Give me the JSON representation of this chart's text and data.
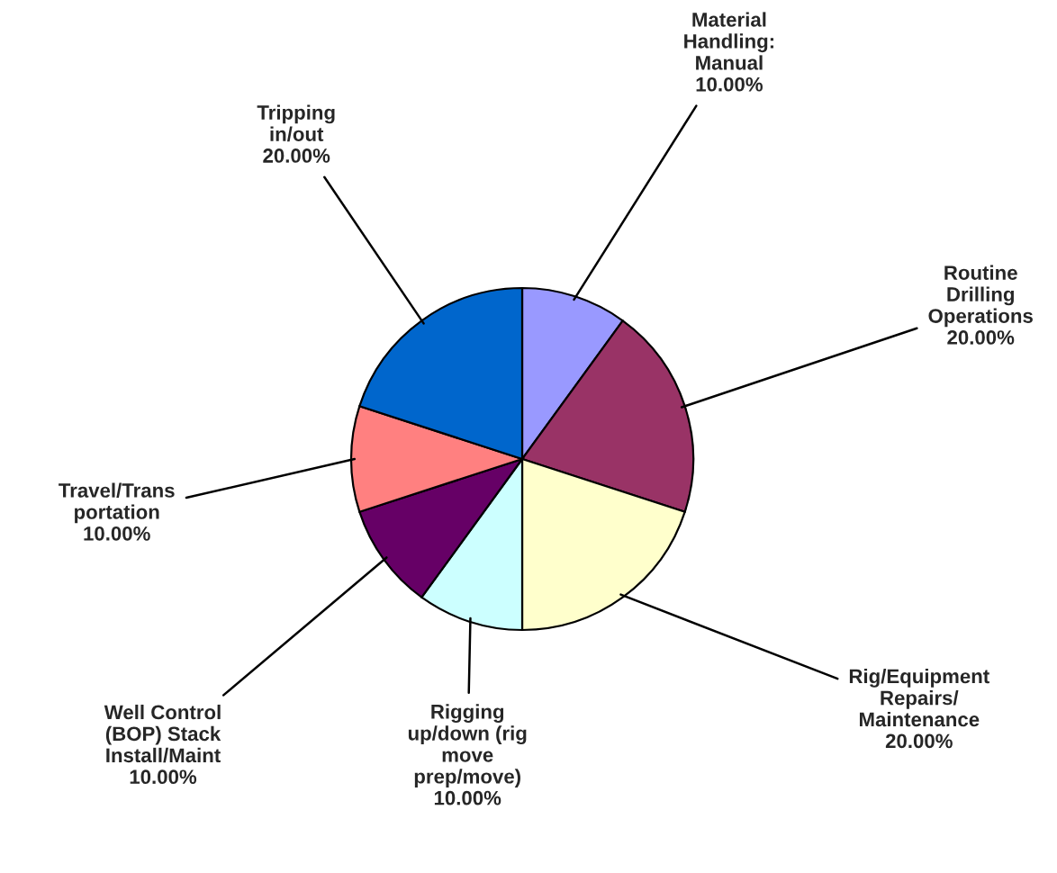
{
  "chart_data": {
    "type": "pie",
    "categories": [
      "Material\nHandling:\nManual",
      "Routine\nDrilling\nOperations",
      "Rig/Equipment\nRepairs/\nMaintenance",
      "Rigging\nup/down (rig\nmove\nprep/move)",
      "Well Control\n(BOP) Stack\nInstall/Maint",
      "Travel/Trans\nportation",
      "Tripping\nin/out"
    ],
    "values": [
      10,
      20,
      20,
      10,
      10,
      10,
      20
    ],
    "value_labels": [
      "10.00%",
      "20.00%",
      "20.00%",
      "10.00%",
      "10.00%",
      "10.00%",
      "20.00%"
    ],
    "colors": [
      "#9999ff",
      "#993366",
      "#ffffcc",
      "#ccffff",
      "#660066",
      "#ff8080",
      "#0066cc"
    ],
    "legend": false
  }
}
